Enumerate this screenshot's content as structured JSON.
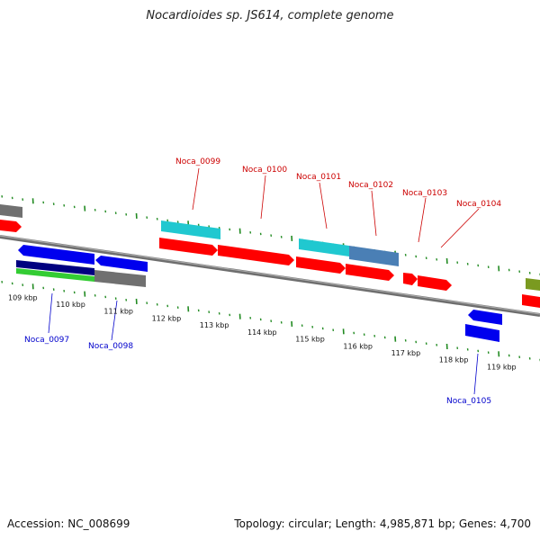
{
  "title": "Nocardioides sp. JS614, complete genome",
  "footer": {
    "accession": "Accession: NC_008699",
    "topology": "Topology: circular; Length: 4,985,871 bp; Genes: 4,700"
  },
  "colors": {
    "forward_cds": "#ff0000",
    "reverse_cds": "#0000ee",
    "cyan_feature": "#20c8d0",
    "steelblue_feature": "#4a7fb5",
    "navy_feature": "#000080",
    "green_feature": "#33cc33",
    "gray_feature": "#707070",
    "olive_feature": "#7a9a20",
    "tick_green": "#228B22",
    "backbone": "#888888"
  },
  "axis": {
    "tick_labels": [
      "109 kbp",
      "110 kbp",
      "111 kbp",
      "112 kbp",
      "113 kbp",
      "114 kbp",
      "115 kbp",
      "116 kbp",
      "117 kbp",
      "118 kbp",
      "119 kbp"
    ]
  },
  "genes_top": [
    {
      "label": "Noca_0099"
    },
    {
      "label": "Noca_0100"
    },
    {
      "label": "Noca_0101"
    },
    {
      "label": "Noca_0102"
    },
    {
      "label": "Noca_0103"
    },
    {
      "label": "Noca_0104"
    }
  ],
  "genes_bottom": [
    {
      "label": "Noca_0097"
    },
    {
      "label": "Noca_0098"
    },
    {
      "label": "Noca_0105"
    }
  ]
}
